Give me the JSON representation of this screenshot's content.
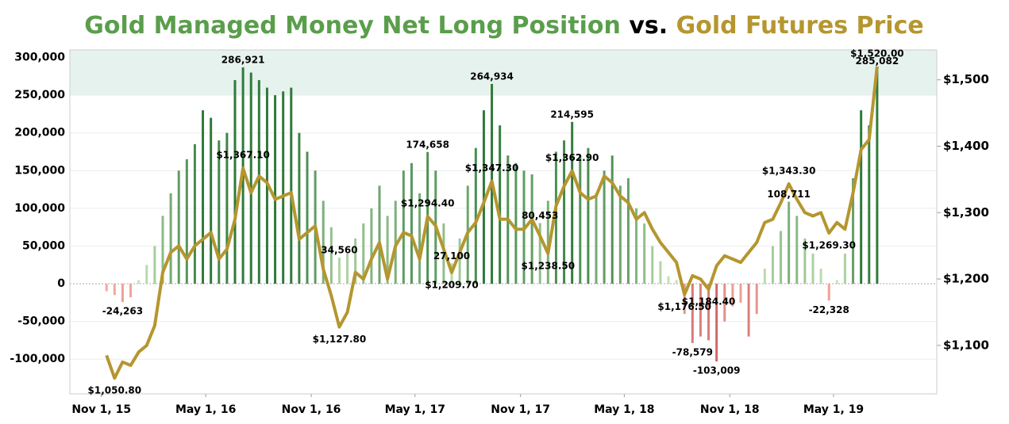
{
  "chart_data": {
    "type": "bar_line",
    "title_parts": [
      {
        "text": "Gold Managed Money Net Long Position",
        "color": "#5a9e4b"
      },
      {
        "text": "vs.",
        "color": "#000000"
      },
      {
        "text": "Gold Futures Price",
        "color": "#b5962f"
      }
    ],
    "x": [
      "2015-11-10",
      "2015-11-24",
      "2015-12-08",
      "2015-12-22",
      "2016-01-05",
      "2016-01-19",
      "2016-02-02",
      "2016-02-16",
      "2016-03-01",
      "2016-03-15",
      "2016-03-29",
      "2016-04-12",
      "2016-04-26",
      "2016-05-10",
      "2016-05-24",
      "2016-06-07",
      "2016-06-21",
      "2016-07-05",
      "2016-07-19",
      "2016-08-02",
      "2016-08-16",
      "2016-08-30",
      "2016-09-13",
      "2016-09-27",
      "2016-10-11",
      "2016-10-25",
      "2016-11-08",
      "2016-11-22",
      "2016-12-06",
      "2016-12-20",
      "2017-01-03",
      "2017-01-17",
      "2017-01-31",
      "2017-02-14",
      "2017-02-28",
      "2017-03-14",
      "2017-03-28",
      "2017-04-11",
      "2017-04-25",
      "2017-05-09",
      "2017-05-23",
      "2017-06-06",
      "2017-06-20",
      "2017-07-04",
      "2017-07-18",
      "2017-08-01",
      "2017-08-15",
      "2017-08-29",
      "2017-09-12",
      "2017-09-26",
      "2017-10-10",
      "2017-10-24",
      "2017-11-07",
      "2017-11-21",
      "2017-12-05",
      "2017-12-19",
      "2018-01-02",
      "2018-01-16",
      "2018-01-30",
      "2018-02-13",
      "2018-02-27",
      "2018-03-13",
      "2018-03-27",
      "2018-04-10",
      "2018-04-24",
      "2018-05-08",
      "2018-05-22",
      "2018-06-05",
      "2018-06-19",
      "2018-07-03",
      "2018-07-17",
      "2018-07-31",
      "2018-08-14",
      "2018-08-28",
      "2018-09-11",
      "2018-09-25",
      "2018-10-09",
      "2018-10-23",
      "2018-11-06",
      "2018-11-20",
      "2018-12-04",
      "2018-12-18",
      "2019-01-01",
      "2019-01-15",
      "2019-01-29",
      "2019-02-12",
      "2019-02-26",
      "2019-03-12",
      "2019-03-26",
      "2019-04-09",
      "2019-04-23",
      "2019-05-07",
      "2019-05-21",
      "2019-06-04",
      "2019-06-18",
      "2019-07-02",
      "2019-07-16"
    ],
    "series": [
      {
        "name": "Gold Managed Money Net Long Position",
        "color": "#2f7a3a",
        "negative_color": "#a3142a",
        "values": [
          -10000,
          -15000,
          -24263,
          -18000,
          5000,
          25000,
          50000,
          90000,
          120000,
          150000,
          165000,
          185000,
          230000,
          220000,
          190000,
          200000,
          270000,
          286921,
          280000,
          270000,
          260000,
          250000,
          255000,
          260000,
          200000,
          175000,
          150000,
          110000,
          75000,
          34560,
          40000,
          60000,
          80000,
          100000,
          130000,
          90000,
          110000,
          150000,
          160000,
          120000,
          174658,
          150000,
          80000,
          27100,
          60000,
          130000,
          180000,
          230000,
          264934,
          210000,
          170000,
          160000,
          150000,
          145000,
          80453,
          110000,
          175000,
          190000,
          214595,
          170000,
          180000,
          120000,
          150000,
          170000,
          130000,
          140000,
          100000,
          80000,
          50000,
          30000,
          10000,
          5000,
          -40000,
          -78579,
          -70000,
          -75000,
          -103009,
          -50000,
          -30000,
          -25000,
          -70000,
          -40000,
          20000,
          50000,
          70000,
          108711,
          90000,
          60000,
          40000,
          20000,
          -22328,
          5000,
          40000,
          140000,
          230000,
          210000,
          285082
        ],
        "value_labels": [
          null,
          null,
          "-24,263",
          null,
          null,
          null,
          null,
          null,
          null,
          null,
          null,
          null,
          null,
          null,
          null,
          null,
          null,
          "286,921",
          null,
          null,
          null,
          null,
          null,
          null,
          null,
          null,
          null,
          null,
          null,
          "34,560",
          null,
          null,
          null,
          null,
          null,
          null,
          null,
          null,
          null,
          null,
          "174,658",
          null,
          null,
          "27,100",
          null,
          null,
          null,
          null,
          "264,934",
          null,
          null,
          null,
          null,
          null,
          "80,453",
          null,
          null,
          null,
          "214,595",
          null,
          null,
          null,
          null,
          null,
          null,
          null,
          null,
          null,
          null,
          null,
          null,
          null,
          null,
          "-78,579",
          null,
          null,
          "-103,009",
          null,
          null,
          null,
          null,
          null,
          null,
          null,
          null,
          "108,711",
          null,
          null,
          null,
          null,
          "-22,328",
          null,
          null,
          null,
          null,
          null,
          "285,082"
        ]
      },
      {
        "name": "Gold Futures Price",
        "color": "#b5962f",
        "axis": "y2",
        "values": [
          1085,
          1050.8,
          1075,
          1070,
          1090,
          1100,
          1130,
          1210,
          1240,
          1250,
          1230,
          1250,
          1260,
          1270,
          1230,
          1245,
          1290,
          1367.1,
          1330,
          1355,
          1345,
          1320,
          1325,
          1330,
          1260,
          1270,
          1280,
          1215,
          1175,
          1127.8,
          1150,
          1210,
          1200,
          1230,
          1255,
          1200,
          1250,
          1270,
          1265,
          1230,
          1294.4,
          1280,
          1245,
          1209.7,
          1240,
          1270,
          1285,
          1315,
          1347.3,
          1290,
          1290,
          1275,
          1275,
          1290,
          1265,
          1238.5,
          1310,
          1340,
          1362.9,
          1330,
          1320,
          1325,
          1355,
          1345,
          1325,
          1315,
          1290,
          1300,
          1275,
          1255,
          1240,
          1225,
          1176.5,
          1205,
          1200,
          1184.4,
          1220,
          1235,
          1230,
          1225,
          1240,
          1255,
          1285,
          1290,
          1315,
          1343.3,
          1320,
          1300,
          1295,
          1300,
          1269.3,
          1285,
          1275,
          1330,
          1395,
          1410,
          1520
        ],
        "value_labels": [
          null,
          "$1,050.80",
          null,
          null,
          null,
          null,
          null,
          null,
          null,
          null,
          null,
          null,
          null,
          null,
          null,
          null,
          null,
          "$1,367.10",
          null,
          null,
          null,
          null,
          null,
          null,
          null,
          null,
          null,
          null,
          null,
          "$1,127.80",
          null,
          null,
          null,
          null,
          null,
          null,
          null,
          null,
          null,
          null,
          "$1,294.40",
          null,
          null,
          "$1,209.70",
          null,
          null,
          null,
          null,
          "$1,347.30",
          null,
          null,
          null,
          null,
          null,
          null,
          "$1,238.50",
          null,
          null,
          "$1,362.90",
          null,
          null,
          null,
          null,
          null,
          null,
          null,
          null,
          null,
          null,
          null,
          null,
          null,
          "$1,176.50",
          null,
          null,
          "$1,184.40",
          null,
          null,
          null,
          null,
          null,
          null,
          null,
          null,
          null,
          "$1,343.30",
          null,
          null,
          null,
          null,
          "$1,269.30",
          null,
          null,
          null,
          null,
          null,
          "$1,520.00"
        ]
      }
    ],
    "xlim": [
      "2015-09-07",
      "2019-10-28"
    ],
    "xticks": [
      {
        "value": "2015-11-01",
        "label": "Nov 1, 15"
      },
      {
        "value": "2016-05-01",
        "label": "May 1, 16"
      },
      {
        "value": "2016-11-01",
        "label": "Nov 1, 16"
      },
      {
        "value": "2017-05-01",
        "label": "May 1, 17"
      },
      {
        "value": "2017-11-01",
        "label": "Nov 1, 17"
      },
      {
        "value": "2018-05-01",
        "label": "May 1, 18"
      },
      {
        "value": "2018-11-01",
        "label": "Nov 1, 18"
      },
      {
        "value": "2019-05-01",
        "label": "May 1, 19"
      }
    ],
    "ylim": [
      -146000,
      310000
    ],
    "yticks": [
      {
        "value": -100000,
        "label": "-100,000"
      },
      {
        "value": -50000,
        "label": "-50,000"
      },
      0,
      {
        "value": 50000,
        "label": "50,000"
      },
      {
        "value": 100000,
        "label": "100,000"
      },
      {
        "value": 150000,
        "label": "150,000"
      },
      {
        "value": 200000,
        "label": "200,000"
      },
      {
        "value": 250000,
        "label": "250,000"
      },
      {
        "value": 300000,
        "label": "300,000"
      }
    ],
    "y2lim": [
      1027,
      1545
    ],
    "y2ticks": [
      {
        "value": 1100,
        "label": "$1,100"
      },
      {
        "value": 1200,
        "label": "$1,200"
      },
      {
        "value": 1300,
        "label": "$1,300"
      },
      {
        "value": 1400,
        "label": "$1,400"
      },
      {
        "value": 1500,
        "label": "$1,500"
      }
    ],
    "highlight_range": [
      250000,
      310000
    ],
    "highlight_color": "#e6f2ee",
    "grid": true
  }
}
